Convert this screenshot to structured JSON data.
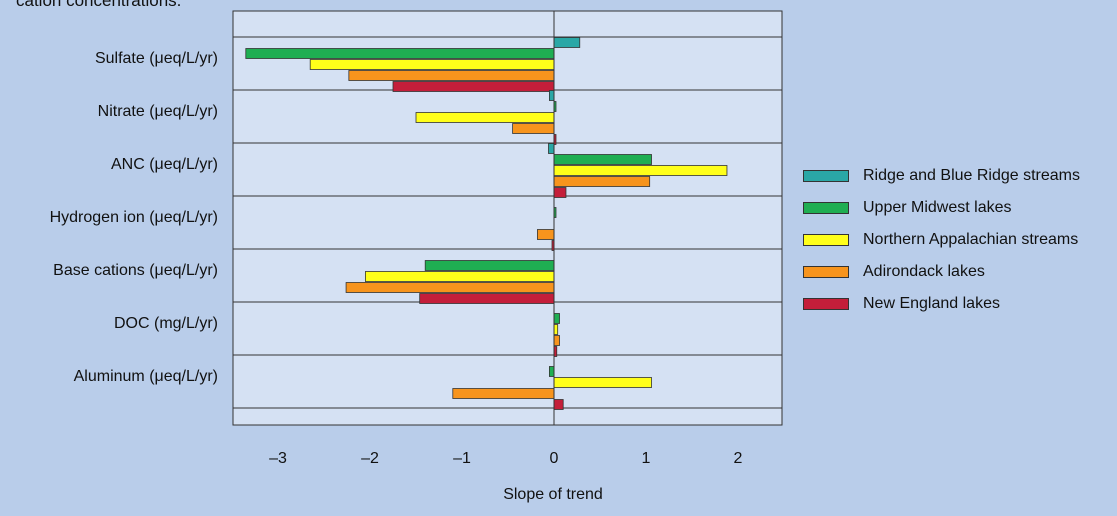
{
  "caption": "cation concentrations.",
  "chart_data": {
    "type": "bar",
    "orientation": "horizontal",
    "title": "",
    "xlabel": "Slope of trend",
    "ylabel": "",
    "xlim": [
      -3.5,
      2.5
    ],
    "xticks": [
      -3,
      -2,
      -1,
      0,
      1,
      2
    ],
    "xtick_labels": [
      "–3",
      "–2",
      "–1",
      "0",
      "1",
      "2"
    ],
    "grid": "horizontal separators between categories",
    "legend_position": "right",
    "categories": [
      "Sulfate (μeq/L/yr)",
      "Nitrate (μeq/L/yr)",
      "ANC (μeq/L/yr)",
      "Hydrogen ion (μeq/L/yr)",
      "Base cations (μeq/L/yr)",
      "DOC (mg/L/yr)",
      "Aluminum (μeq/L/yr)"
    ],
    "series": [
      {
        "name": "Ridge and Blue Ridge streams",
        "color": "#2aa7a6",
        "values": [
          0.28,
          -0.05,
          -0.06,
          null,
          null,
          null,
          null
        ]
      },
      {
        "name": "Upper Midwest lakes",
        "color": "#1fae52",
        "values": [
          -3.35,
          0.02,
          1.06,
          0.0,
          -1.4,
          0.06,
          -0.05
        ]
      },
      {
        "name": "Northern Appalachian streams",
        "color": "#ffff1a",
        "values": [
          -2.65,
          -1.5,
          1.88,
          null,
          -2.05,
          0.04,
          1.06
        ]
      },
      {
        "name": "Adirondack lakes",
        "color": "#f7941d",
        "values": [
          -2.23,
          -0.45,
          1.04,
          -0.18,
          -2.26,
          0.06,
          -1.1
        ]
      },
      {
        "name": "New England lakes",
        "color": "#c41e3a",
        "values": [
          -1.75,
          0.02,
          0.13,
          -0.01,
          -1.46,
          0.03,
          0.1
        ]
      }
    ]
  }
}
